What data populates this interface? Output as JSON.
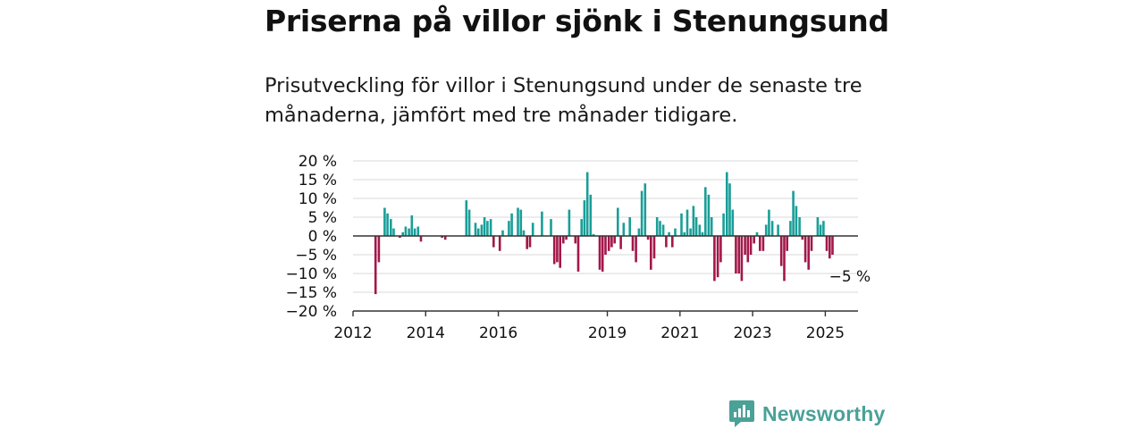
{
  "header": {
    "title": "Priserna på villor sjönk i Stenungsund",
    "subtitle": "Prisutveckling för villor i Stenungsund under de senaste tre månaderna, jämfört med tre månader tidigare."
  },
  "brand": {
    "name": "Newsworthy",
    "icon": "newsworthy-logo-icon"
  },
  "colors": {
    "positive": "#1a9e98",
    "negative": "#a3174a",
    "grid": "#d9d9d9",
    "zero": "#333333",
    "brand": "#4aa197"
  },
  "chart_data": {
    "type": "bar",
    "title": "",
    "xlabel": "",
    "ylabel": "",
    "ylim": [
      -20,
      20
    ],
    "y_ticks": [
      20,
      15,
      10,
      5,
      0,
      -5,
      -10,
      -15,
      -20
    ],
    "y_tick_labels": [
      "20 %",
      "15 %",
      "10 %",
      "5 %",
      "0 %",
      "−5 %",
      "−10 %",
      "−15 %",
      "−20 %"
    ],
    "x_ticks": [
      2012,
      2014,
      2016,
      2019,
      2021,
      2023,
      2025
    ],
    "x_tick_labels": [
      "2012",
      "2014",
      "2016",
      "2019",
      "2021",
      "2023",
      "2025"
    ],
    "x_range": [
      2012.0,
      2025.9
    ],
    "grid": true,
    "annotation": {
      "text": "−5 %",
      "x": 2025.25,
      "y": -5
    },
    "series": [
      {
        "points": [
          [
            2012.62,
            -15.5
          ],
          [
            2012.71,
            -7
          ],
          [
            2012.87,
            7.5
          ],
          [
            2012.95,
            6
          ],
          [
            2013.04,
            4.5
          ],
          [
            2013.12,
            2
          ],
          [
            2013.29,
            -0.5
          ],
          [
            2013.37,
            1
          ],
          [
            2013.45,
            2.5
          ],
          [
            2013.54,
            2
          ],
          [
            2013.62,
            5.5
          ],
          [
            2013.7,
            2
          ],
          [
            2013.79,
            2.5
          ],
          [
            2013.87,
            -1.5
          ],
          [
            2014.45,
            -0.5
          ],
          [
            2014.54,
            -1
          ],
          [
            2015.12,
            9.5
          ],
          [
            2015.2,
            7
          ],
          [
            2015.37,
            3.5
          ],
          [
            2015.45,
            2
          ],
          [
            2015.54,
            3
          ],
          [
            2015.62,
            5
          ],
          [
            2015.7,
            4
          ],
          [
            2015.79,
            4.5
          ],
          [
            2015.87,
            -3
          ],
          [
            2016.04,
            -4
          ],
          [
            2016.12,
            1.5
          ],
          [
            2016.29,
            4
          ],
          [
            2016.37,
            6
          ],
          [
            2016.54,
            7.5
          ],
          [
            2016.62,
            7
          ],
          [
            2016.7,
            1.5
          ],
          [
            2016.79,
            -3.5
          ],
          [
            2016.87,
            -3
          ],
          [
            2016.95,
            3.5
          ],
          [
            2017.2,
            6.5
          ],
          [
            2017.45,
            4.5
          ],
          [
            2017.54,
            -7.5
          ],
          [
            2017.62,
            -7
          ],
          [
            2017.7,
            -8.5
          ],
          [
            2017.79,
            -2
          ],
          [
            2017.87,
            -1
          ],
          [
            2017.95,
            7
          ],
          [
            2018.12,
            -2
          ],
          [
            2018.2,
            -9.5
          ],
          [
            2018.29,
            4.5
          ],
          [
            2018.37,
            9.5
          ],
          [
            2018.45,
            17
          ],
          [
            2018.54,
            11
          ],
          [
            2018.62,
            0.5
          ],
          [
            2018.79,
            -9
          ],
          [
            2018.87,
            -9.5
          ],
          [
            2018.95,
            -5
          ],
          [
            2019.04,
            -4
          ],
          [
            2019.12,
            -3
          ],
          [
            2019.2,
            -2
          ],
          [
            2019.29,
            7.5
          ],
          [
            2019.37,
            -3.5
          ],
          [
            2019.45,
            3.5
          ],
          [
            2019.62,
            5
          ],
          [
            2019.7,
            -4
          ],
          [
            2019.79,
            -7
          ],
          [
            2019.87,
            2
          ],
          [
            2019.95,
            12
          ],
          [
            2020.04,
            14
          ],
          [
            2020.12,
            -1
          ],
          [
            2020.2,
            -9
          ],
          [
            2020.29,
            -6
          ],
          [
            2020.37,
            5
          ],
          [
            2020.45,
            4
          ],
          [
            2020.54,
            3
          ],
          [
            2020.62,
            -3
          ],
          [
            2020.7,
            1
          ],
          [
            2020.79,
            -3
          ],
          [
            2020.87,
            2
          ],
          [
            2021.04,
            6
          ],
          [
            2021.12,
            1
          ],
          [
            2021.2,
            7
          ],
          [
            2021.29,
            2
          ],
          [
            2021.37,
            8
          ],
          [
            2021.45,
            5
          ],
          [
            2021.54,
            3
          ],
          [
            2021.62,
            1
          ],
          [
            2021.7,
            13
          ],
          [
            2021.79,
            11
          ],
          [
            2021.87,
            5
          ],
          [
            2021.95,
            -12
          ],
          [
            2022.04,
            -11
          ],
          [
            2022.12,
            -7
          ],
          [
            2022.2,
            6
          ],
          [
            2022.29,
            17
          ],
          [
            2022.37,
            14
          ],
          [
            2022.45,
            7
          ],
          [
            2022.54,
            -10
          ],
          [
            2022.62,
            -10
          ],
          [
            2022.7,
            -12
          ],
          [
            2022.79,
            -5
          ],
          [
            2022.87,
            -7
          ],
          [
            2022.95,
            -5
          ],
          [
            2023.04,
            -2
          ],
          [
            2023.12,
            1
          ],
          [
            2023.2,
            -4
          ],
          [
            2023.29,
            -4
          ],
          [
            2023.37,
            3
          ],
          [
            2023.45,
            7
          ],
          [
            2023.54,
            4
          ],
          [
            2023.7,
            3
          ],
          [
            2023.79,
            -8
          ],
          [
            2023.87,
            -12
          ],
          [
            2023.95,
            -4
          ],
          [
            2024.04,
            4
          ],
          [
            2024.12,
            12
          ],
          [
            2024.2,
            8
          ],
          [
            2024.29,
            5
          ],
          [
            2024.37,
            -1
          ],
          [
            2024.45,
            -7
          ],
          [
            2024.54,
            -9
          ],
          [
            2024.62,
            -4
          ],
          [
            2024.79,
            5
          ],
          [
            2024.87,
            3
          ],
          [
            2024.95,
            4
          ],
          [
            2025.04,
            -4
          ],
          [
            2025.12,
            -6
          ],
          [
            2025.2,
            -5
          ]
        ]
      }
    ]
  }
}
